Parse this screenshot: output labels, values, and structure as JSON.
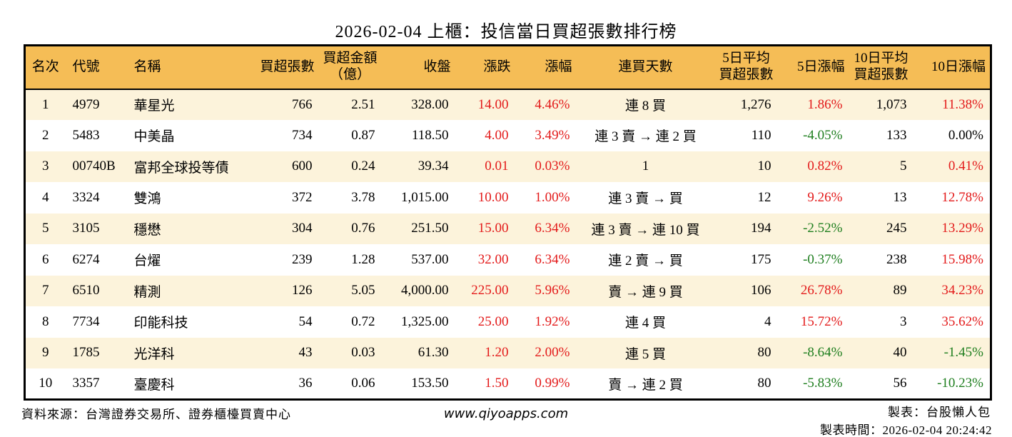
{
  "title": "2026-02-04 上櫃：投信當日買超張數排行榜",
  "colors": {
    "up": "#e31a1a",
    "down": "#1e7e1e",
    "neutral": "#000000",
    "header_bg": "#f5bd56",
    "row_alt_bg": "#fcf3db"
  },
  "table": {
    "columns": [
      {
        "id": "rank",
        "label": "名次",
        "align": "center"
      },
      {
        "id": "code",
        "label": "代號",
        "align": "left"
      },
      {
        "id": "name",
        "label": "名稱",
        "align": "left"
      },
      {
        "id": "lots",
        "label": "買超張數",
        "align": "right"
      },
      {
        "id": "amount",
        "label": "買超金額\n（億）",
        "align": "right",
        "halign": "center"
      },
      {
        "id": "close",
        "label": "收盤",
        "align": "right"
      },
      {
        "id": "change",
        "label": "漲跌",
        "align": "right"
      },
      {
        "id": "change_pct",
        "label": "漲幅",
        "align": "right"
      },
      {
        "id": "streak",
        "label": "連買天數",
        "align": "center"
      },
      {
        "id": "avg5",
        "label": "5日平均\n買超張數",
        "align": "right",
        "halign": "center"
      },
      {
        "id": "pct5",
        "label": "5日漲幅",
        "align": "right"
      },
      {
        "id": "avg10",
        "label": "10日平均\n買超張數",
        "align": "right",
        "halign": "center"
      },
      {
        "id": "pct10",
        "label": "10日漲幅",
        "align": "right"
      }
    ],
    "rows": [
      {
        "rank": "1",
        "code": "4979",
        "name": "華星光",
        "lots": "766",
        "amount": "2.51",
        "close": "328.00",
        "change": {
          "text": "14.00",
          "color": "up"
        },
        "change_pct": {
          "text": "4.46%",
          "color": "up"
        },
        "streak": "連 8 買",
        "avg5": "1,276",
        "pct5": {
          "text": "1.86%",
          "color": "up"
        },
        "avg10": "1,073",
        "pct10": {
          "text": "11.38%",
          "color": "up"
        }
      },
      {
        "rank": "2",
        "code": "5483",
        "name": "中美晶",
        "lots": "734",
        "amount": "0.87",
        "close": "118.50",
        "change": {
          "text": "4.00",
          "color": "up"
        },
        "change_pct": {
          "text": "3.49%",
          "color": "up"
        },
        "streak": "連 3 賣 → 連 2 買",
        "avg5": "110",
        "pct5": {
          "text": "-4.05%",
          "color": "down"
        },
        "avg10": "133",
        "pct10": {
          "text": "0.00%",
          "color": "neutral"
        }
      },
      {
        "rank": "3",
        "code": "00740B",
        "name": "富邦全球投等債",
        "lots": "600",
        "amount": "0.24",
        "close": "39.34",
        "change": {
          "text": "0.01",
          "color": "up"
        },
        "change_pct": {
          "text": "0.03%",
          "color": "up"
        },
        "streak": "1",
        "avg5": "10",
        "pct5": {
          "text": "0.82%",
          "color": "up"
        },
        "avg10": "5",
        "pct10": {
          "text": "0.41%",
          "color": "up"
        }
      },
      {
        "rank": "4",
        "code": "3324",
        "name": "雙鴻",
        "lots": "372",
        "amount": "3.78",
        "close": "1,015.00",
        "change": {
          "text": "10.00",
          "color": "up"
        },
        "change_pct": {
          "text": "1.00%",
          "color": "up"
        },
        "streak": "連 3 賣 → 買",
        "avg5": "12",
        "pct5": {
          "text": "9.26%",
          "color": "up"
        },
        "avg10": "13",
        "pct10": {
          "text": "12.78%",
          "color": "up"
        }
      },
      {
        "rank": "5",
        "code": "3105",
        "name": "穩懋",
        "lots": "304",
        "amount": "0.76",
        "close": "251.50",
        "change": {
          "text": "15.00",
          "color": "up"
        },
        "change_pct": {
          "text": "6.34%",
          "color": "up"
        },
        "streak": "連 3 賣 → 連 10 買",
        "avg5": "194",
        "pct5": {
          "text": "-2.52%",
          "color": "down"
        },
        "avg10": "245",
        "pct10": {
          "text": "13.29%",
          "color": "up"
        }
      },
      {
        "rank": "6",
        "code": "6274",
        "name": "台燿",
        "lots": "239",
        "amount": "1.28",
        "close": "537.00",
        "change": {
          "text": "32.00",
          "color": "up"
        },
        "change_pct": {
          "text": "6.34%",
          "color": "up"
        },
        "streak": "連 2 賣 → 買",
        "avg5": "175",
        "pct5": {
          "text": "-0.37%",
          "color": "down"
        },
        "avg10": "238",
        "pct10": {
          "text": "15.98%",
          "color": "up"
        }
      },
      {
        "rank": "7",
        "code": "6510",
        "name": "精測",
        "lots": "126",
        "amount": "5.05",
        "close": "4,000.00",
        "change": {
          "text": "225.00",
          "color": "up"
        },
        "change_pct": {
          "text": "5.96%",
          "color": "up"
        },
        "streak": "賣 → 連 9 買",
        "avg5": "106",
        "pct5": {
          "text": "26.78%",
          "color": "up"
        },
        "avg10": "89",
        "pct10": {
          "text": "34.23%",
          "color": "up"
        }
      },
      {
        "rank": "8",
        "code": "7734",
        "name": "印能科技",
        "lots": "54",
        "amount": "0.72",
        "close": "1,325.00",
        "change": {
          "text": "25.00",
          "color": "up"
        },
        "change_pct": {
          "text": "1.92%",
          "color": "up"
        },
        "streak": "連 4 買",
        "avg5": "4",
        "pct5": {
          "text": "15.72%",
          "color": "up"
        },
        "avg10": "3",
        "pct10": {
          "text": "35.62%",
          "color": "up"
        }
      },
      {
        "rank": "9",
        "code": "1785",
        "name": "光洋科",
        "lots": "43",
        "amount": "0.03",
        "close": "61.30",
        "change": {
          "text": "1.20",
          "color": "up"
        },
        "change_pct": {
          "text": "2.00%",
          "color": "up"
        },
        "streak": "連 5 買",
        "avg5": "80",
        "pct5": {
          "text": "-8.64%",
          "color": "down"
        },
        "avg10": "40",
        "pct10": {
          "text": "-1.45%",
          "color": "down"
        }
      },
      {
        "rank": "10",
        "code": "3357",
        "name": "臺慶科",
        "lots": "36",
        "amount": "0.06",
        "close": "153.50",
        "change": {
          "text": "1.50",
          "color": "up"
        },
        "change_pct": {
          "text": "0.99%",
          "color": "up"
        },
        "streak": "賣 → 連 2 買",
        "avg5": "80",
        "pct5": {
          "text": "-5.83%",
          "color": "down"
        },
        "avg10": "56",
        "pct10": {
          "text": "-10.23%",
          "color": "down"
        }
      }
    ]
  },
  "footer": {
    "source": "資料來源：台灣證券交易所、證券櫃檯買賣中心",
    "website": "www.qiyoapps.com",
    "maker": "製表：台股懶人包",
    "timestamp": "製表時間：2026-02-04 20:24:42"
  }
}
